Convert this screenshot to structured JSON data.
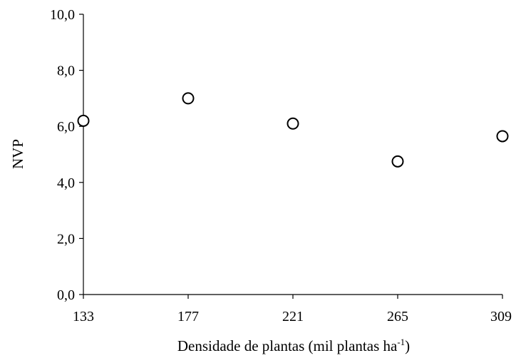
{
  "chart_data": {
    "type": "scatter",
    "title": "",
    "xlabel": "Densidade de plantas (mil plantas ha",
    "xlabel_superscript": "-1",
    "xlabel_suffix": ")",
    "ylabel": "NVP",
    "x_ticks": [
      133,
      177,
      221,
      265,
      309
    ],
    "x_tick_labels": [
      "133",
      "177",
      "221",
      "265",
      "309"
    ],
    "y_ticks": [
      0,
      2,
      4,
      6,
      8,
      10
    ],
    "y_tick_labels": [
      "0,0",
      "2,0",
      "4,0",
      "6,0",
      "8,0",
      "10,0"
    ],
    "xlim": [
      133,
      309
    ],
    "ylim": [
      0,
      10
    ],
    "grid": false,
    "series": [
      {
        "x": [
          133,
          177,
          221,
          265,
          309
        ],
        "y": [
          6.2,
          7.0,
          6.1,
          4.75,
          5.65
        ]
      }
    ],
    "colors": {
      "marker_fill": "#ffffff",
      "marker_stroke": "#000000",
      "axis": "#000000"
    }
  }
}
